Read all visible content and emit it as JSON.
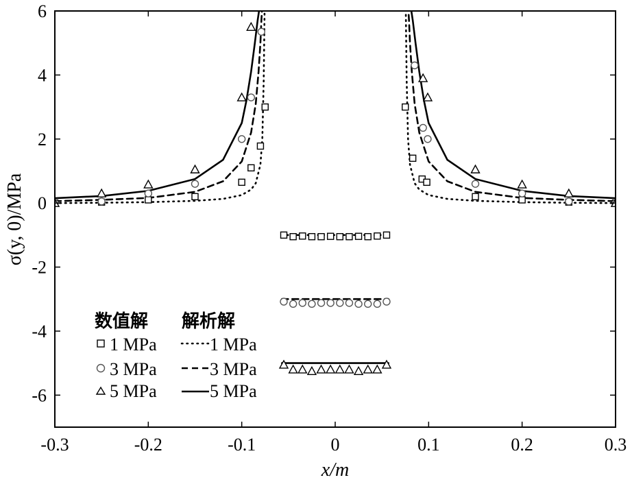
{
  "chart_data": {
    "type": "line",
    "xlabel": "x/m",
    "ylabel": "σ(y, 0)/MPa",
    "xlim": [
      -0.3,
      0.3
    ],
    "ylim": [
      -7,
      6
    ],
    "xticks": [
      -0.3,
      -0.2,
      -0.1,
      0,
      0.1,
      0.2,
      0.3
    ],
    "xtick_labels": [
      "-0.3",
      "-0.2",
      "-0.1",
      "0",
      "0.1",
      "0.2",
      "0.3"
    ],
    "yticks": [
      -6,
      -4,
      -2,
      0,
      2,
      4,
      6
    ],
    "ytick_labels": [
      "-6",
      "-4",
      "-2",
      "0",
      "2",
      "4",
      "6"
    ],
    "grid": false,
    "legend": {
      "placement": "bottom-left",
      "col1_header": "数值解",
      "col2_header": "解析解",
      "entries": [
        {
          "marker": "square",
          "line": "dotted",
          "marker_label": "1 MPa",
          "line_label": "1 MPa"
        },
        {
          "marker": "circle",
          "line": "dashed",
          "marker_label": "3 MPa",
          "line_label": "3 MPa"
        },
        {
          "marker": "triangle",
          "line": "solid",
          "marker_label": "5 MPa",
          "line_label": "5 MPa"
        }
      ]
    },
    "analytical_series": [
      {
        "pressure": 1,
        "style": "dotted",
        "x": [
          -0.3,
          -0.25,
          -0.2,
          -0.15,
          -0.12,
          -0.1,
          -0.09,
          -0.085,
          -0.08,
          -0.078,
          -0.0765,
          -0.0755,
          0.0755,
          0.0765,
          0.078,
          0.08,
          0.085,
          0.09,
          0.1,
          0.12,
          0.15,
          0.2,
          0.25,
          0.3
        ],
        "y": [
          0.0,
          0.01,
          0.03,
          0.07,
          0.13,
          0.25,
          0.42,
          0.62,
          1.2,
          2.0,
          3.8,
          6.2,
          6.2,
          3.8,
          2.0,
          1.2,
          0.62,
          0.42,
          0.25,
          0.13,
          0.07,
          0.03,
          0.01,
          0.0
        ]
      },
      {
        "pressure": 3,
        "style": "dashed",
        "x": [
          -0.3,
          -0.25,
          -0.2,
          -0.15,
          -0.12,
          -0.1,
          -0.09,
          -0.085,
          -0.082,
          -0.08,
          -0.079,
          -0.078,
          0.078,
          0.079,
          0.08,
          0.082,
          0.085,
          0.09,
          0.1,
          0.12,
          0.15,
          0.2,
          0.25,
          0.3
        ],
        "y": [
          0.06,
          0.1,
          0.16,
          0.35,
          0.68,
          1.3,
          2.2,
          3.1,
          4.1,
          5.0,
          5.7,
          6.2,
          6.2,
          5.7,
          5.0,
          4.1,
          3.1,
          2.2,
          1.3,
          0.68,
          0.35,
          0.16,
          0.1,
          0.06
        ]
      },
      {
        "pressure": 5,
        "style": "solid",
        "x": [
          -0.3,
          -0.25,
          -0.2,
          -0.15,
          -0.12,
          -0.1,
          -0.095,
          -0.09,
          -0.086,
          -0.083,
          -0.081,
          -0.08,
          0.08,
          0.081,
          0.083,
          0.086,
          0.09,
          0.095,
          0.1,
          0.12,
          0.15,
          0.2,
          0.25,
          0.3
        ],
        "y": [
          0.15,
          0.22,
          0.38,
          0.75,
          1.35,
          2.5,
          3.2,
          4.1,
          5.0,
          5.7,
          6.1,
          6.3,
          6.3,
          6.1,
          5.7,
          5.0,
          4.1,
          3.2,
          2.5,
          1.35,
          0.75,
          0.38,
          0.22,
          0.15
        ]
      },
      {
        "pressure": 1,
        "style": "dotted",
        "x": [
          -0.057,
          0.057
        ],
        "y": [
          -1.0,
          -1.0
        ]
      },
      {
        "pressure": 3,
        "style": "dashed",
        "x": [
          -0.057,
          0.057
        ],
        "y": [
          -3.0,
          -3.0
        ]
      },
      {
        "pressure": 5,
        "style": "solid",
        "x": [
          -0.057,
          0.057
        ],
        "y": [
          -5.0,
          -5.0
        ]
      }
    ],
    "numerical_series": [
      {
        "pressure": 1,
        "marker": "square",
        "x": [
          -0.3,
          -0.25,
          -0.2,
          -0.15,
          -0.1,
          -0.09,
          -0.08,
          -0.075,
          -0.055,
          -0.045,
          -0.035,
          -0.025,
          -0.015,
          -0.005,
          0.005,
          0.015,
          0.025,
          0.035,
          0.045,
          0.055,
          0.075,
          0.083,
          0.093,
          0.098,
          0.15,
          0.2,
          0.25,
          0.3
        ],
        "y": [
          0.0,
          0.03,
          0.1,
          0.2,
          0.65,
          1.1,
          1.78,
          3.0,
          -1.0,
          -1.05,
          -1.03,
          -1.05,
          -1.05,
          -1.04,
          -1.05,
          -1.05,
          -1.04,
          -1.05,
          -1.03,
          -1.0,
          3.0,
          1.4,
          0.75,
          0.65,
          0.2,
          0.1,
          0.03,
          0.0
        ]
      },
      {
        "pressure": 3,
        "marker": "circle",
        "x": [
          -0.3,
          -0.25,
          -0.2,
          -0.15,
          -0.1,
          -0.09,
          -0.079,
          -0.055,
          -0.045,
          -0.035,
          -0.025,
          -0.015,
          -0.005,
          0.005,
          0.015,
          0.025,
          0.035,
          0.045,
          0.055,
          0.085,
          0.094,
          0.099,
          0.15,
          0.2,
          0.25,
          0.3
        ],
        "y": [
          0.0,
          0.05,
          0.3,
          0.6,
          2.0,
          3.3,
          5.35,
          -3.08,
          -3.15,
          -3.12,
          -3.15,
          -3.12,
          -3.12,
          -3.12,
          -3.12,
          -3.15,
          -3.15,
          -3.15,
          -3.08,
          4.3,
          2.35,
          2.0,
          0.6,
          0.3,
          0.05,
          0.0
        ]
      },
      {
        "pressure": 5,
        "marker": "triangle",
        "x": [
          -0.3,
          -0.25,
          -0.2,
          -0.15,
          -0.1,
          -0.09,
          -0.055,
          -0.045,
          -0.035,
          -0.025,
          -0.015,
          -0.005,
          0.005,
          0.015,
          0.025,
          0.035,
          0.045,
          0.055,
          0.094,
          0.099,
          0.15,
          0.2,
          0.25,
          0.3
        ],
        "y": [
          0.0,
          0.3,
          0.58,
          1.05,
          3.3,
          5.5,
          -5.05,
          -5.2,
          -5.2,
          -5.25,
          -5.2,
          -5.2,
          -5.2,
          -5.2,
          -5.25,
          -5.2,
          -5.2,
          -5.05,
          3.9,
          3.3,
          1.05,
          0.58,
          0.3,
          0.0
        ]
      }
    ]
  }
}
